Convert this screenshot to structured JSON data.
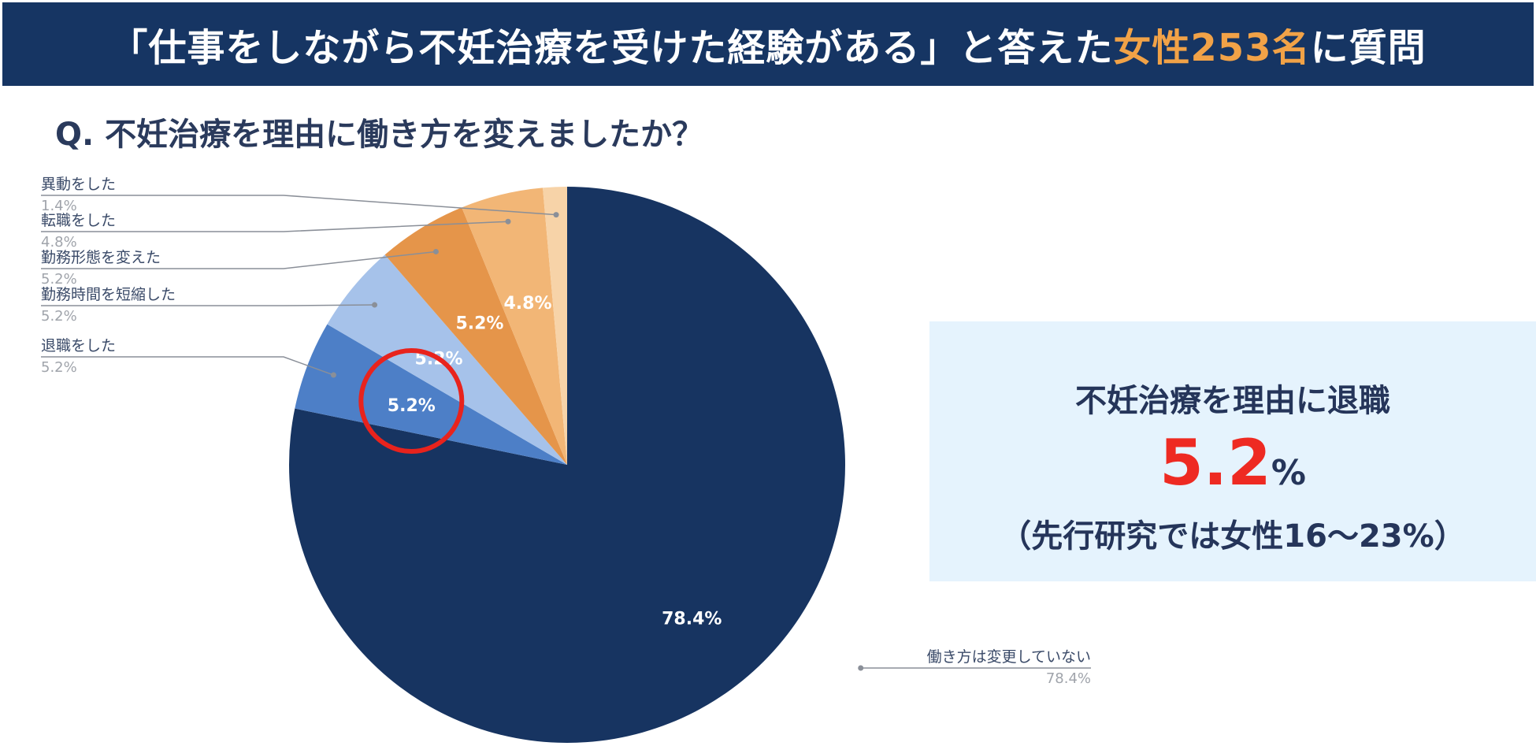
{
  "header": {
    "title_prefix": "「仕事をしながら不妊治療を受けた経験がある」と答えた",
    "title_highlight": "女性253名",
    "title_suffix": "に質問"
  },
  "question": "Q. 不妊治療を理由に働き方を変えましたか？",
  "chart_data": {
    "type": "pie",
    "slices": [
      {
        "label": "働き方は変更していない",
        "value": 78.4,
        "value_label": "78.4%",
        "color": "#173461"
      },
      {
        "label": "退職をした",
        "value": 5.2,
        "value_label": "5.2%",
        "color": "#4d7fc7"
      },
      {
        "label": "勤務時間を短縮した",
        "value": 5.2,
        "value_label": "5.2%",
        "color": "#a6c2ea"
      },
      {
        "label": "勤務形態を変えた",
        "value": 5.2,
        "value_label": "5.2%",
        "color": "#e5954a"
      },
      {
        "label": "転職をした",
        "value": 4.8,
        "value_label": "4.8%",
        "color": "#f2b676"
      },
      {
        "label": "異動をした",
        "value": 1.4,
        "value_label": "1.4%",
        "color": "#f7d3a8"
      }
    ],
    "highlight": "退職をした",
    "highlight_color": "#e8231d"
  },
  "result_box": {
    "title": "不妊治療を理由に退職",
    "value": "5.2",
    "unit": "%",
    "note": "（先行研究では女性16～23%）"
  }
}
